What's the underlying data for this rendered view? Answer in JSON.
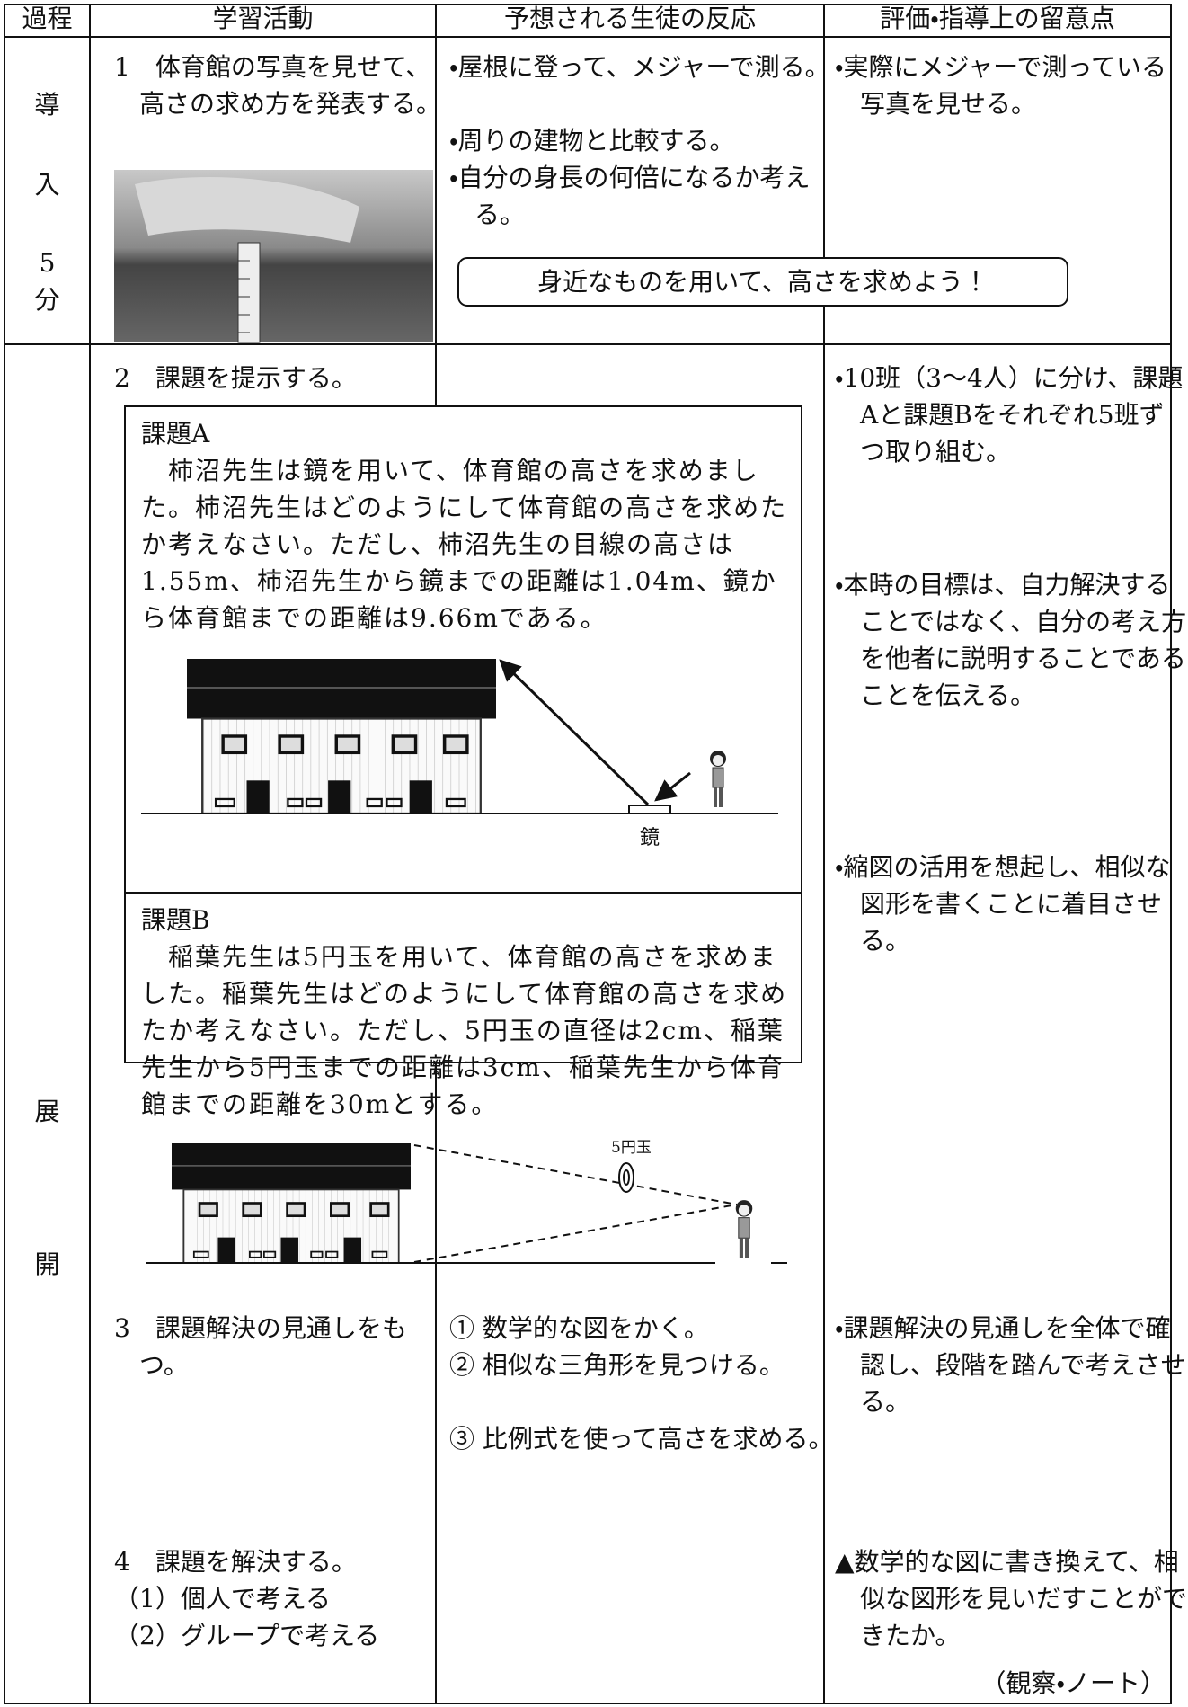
{
  "table": {
    "header": [
      "過程",
      "学習活動",
      "予想される生徒の反応",
      "評価・指導上の留意点"
    ],
    "intro": {
      "stage": [
        "導",
        "入",
        "5",
        "分"
      ],
      "activity": "1　体育館の写真を見せて、高さの求め方を発表する。",
      "reactions": [
        "・屋根に登って、メジャーで測る。",
        "・周りの建物と比較する。",
        "・自分の身長の何倍になるか考える。"
      ],
      "notes": [
        "・実際にメジャーで測っている写真を見せる。"
      ],
      "goal": "身近なものを用いて、高さを求めよう！"
    },
    "development": {
      "stage": [
        "展",
        "開"
      ],
      "activity_2": "2　課題を提示する。",
      "task_a": {
        "title": "課題A",
        "text": "　柿沼先生は鏡を用いて、体育館の高さを求めました。柿沼先生はどのようにして体育館の高さを求めたか考えなさい。ただし、柿沼先生の目線の高さは1.55m、柿沼先生から鏡までの距離は1.04m、鏡から体育館までの距離は9.66mである。",
        "figure_label": "鏡"
      },
      "task_b": {
        "title": "課題B",
        "text": "　稲葉先生は5円玉を用いて、体育館の高さを求めました。稲葉先生はどのようにして体育館の高さを求めたか考えなさい。ただし、5円玉の直径は2cm、稲葉先生から5円玉までの距離は3cm、稲葉先生から体育館までの距離を30mとする。",
        "figure_label": "5円玉"
      },
      "notes": [
        "・10班（3〜4人）に分け、課題Aと課題Bをそれぞれ5班ずつ取り組む。",
        "・本時の目標は、自力解決することではなく、自分の考え方を他者に説明することであることを伝える。",
        "・縮図の活用を想起し、相似な図形を書くことに着目させる。"
      ],
      "activity_3": "3　課題解決の見通しをもつ。",
      "reactions_3": [
        "① 数学的な図をかく。",
        "② 相似な三角形を見つける。",
        "③ 比例式を使って高さを求める。"
      ],
      "notes_3": "・課題解決の見通しを全体で確認し、段階を踏んで考えさせる。",
      "activity_4": [
        "4　課題を解決する。",
        "（1）個人で考える",
        "（2）グループで考える"
      ],
      "notes_4": "▲数学的な図に書き換えて、相似な図形を見いだすことができたか。",
      "notes_4_method": "（観察・ノート）"
    }
  }
}
